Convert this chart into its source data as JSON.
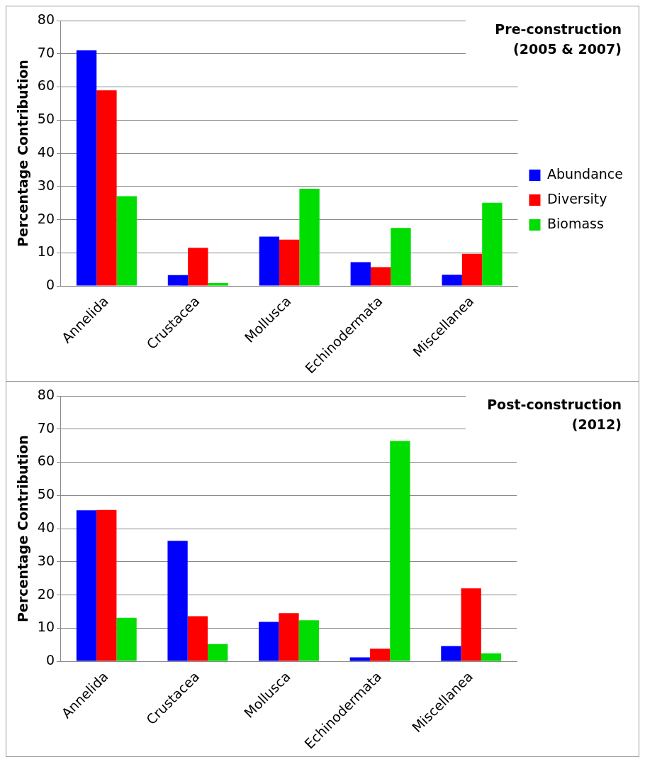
{
  "chart_data": [
    {
      "type": "bar",
      "title": "Pre-construction (2005 & 2007)",
      "ylabel": "Percentage Contribution",
      "categories": [
        "Annelida",
        "Crustacea",
        "Mollusca",
        "Echinodermata",
        "Miscellanea"
      ],
      "series": [
        {
          "name": "Abundance",
          "color": "#0000ff",
          "values": [
            71,
            3.3,
            14.9,
            7.2,
            3.4
          ]
        },
        {
          "name": "Diversity",
          "color": "#ff0000",
          "values": [
            59,
            11.5,
            14,
            5.7,
            9.7
          ]
        },
        {
          "name": "Biomass",
          "color": "#00dd00",
          "values": [
            27.1,
            0.9,
            29.3,
            17.5,
            25.1
          ]
        }
      ],
      "ylim": [
        0,
        80
      ],
      "yticks": [
        0,
        10,
        20,
        30,
        40,
        50,
        60,
        70,
        80
      ],
      "grid": "y",
      "legend": "right"
    },
    {
      "type": "bar",
      "title": "Post-construction (2012)",
      "ylabel": "Percentage Contribution",
      "categories": [
        "Annelida",
        "Crustacea",
        "Mollusca",
        "Echinodermata",
        "Miscellanea"
      ],
      "series": [
        {
          "color": "#0000ff",
          "values": [
            45.5,
            36.3,
            11.9,
            1.2,
            4.6
          ]
        },
        {
          "color": "#ff0000",
          "values": [
            45.6,
            13.6,
            14.5,
            3.8,
            22
          ]
        },
        {
          "color": "#00dd00",
          "values": [
            13.1,
            5.2,
            12.4,
            66.4,
            2.4
          ]
        }
      ],
      "ylim": [
        0,
        80
      ],
      "yticks": [
        0,
        10,
        20,
        30,
        40,
        50,
        60,
        70,
        80
      ],
      "grid": "y",
      "legend": false
    }
  ]
}
